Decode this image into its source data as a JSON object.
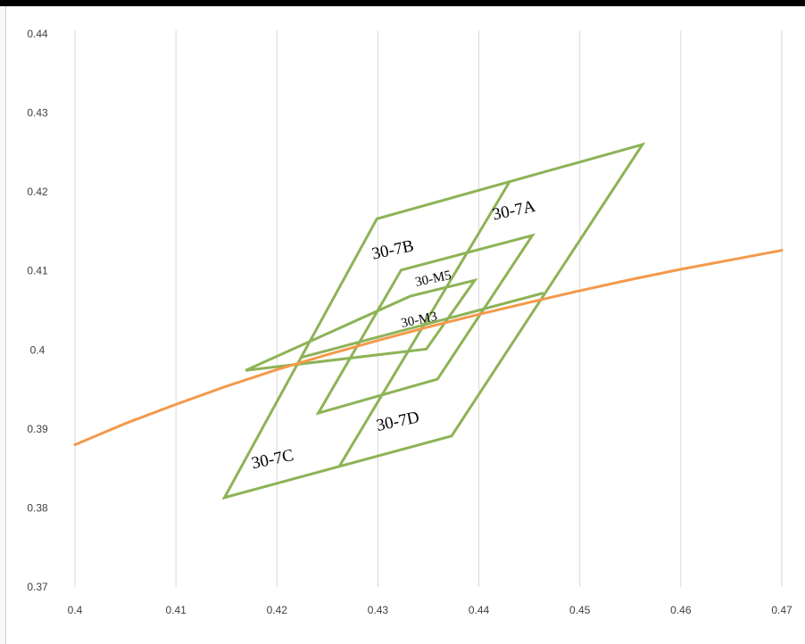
{
  "chart_data": {
    "type": "line",
    "title": "",
    "xlabel": "",
    "ylabel": "",
    "xlim": [
      0.4,
      0.47
    ],
    "ylim": [
      0.37,
      0.44
    ],
    "x_ticks": [
      "0.4",
      "0.41",
      "0.42",
      "0.43",
      "0.44",
      "0.45",
      "0.46",
      "0.47"
    ],
    "y_ticks": [
      "0.37",
      "0.38",
      "0.39",
      "0.4",
      "0.41",
      "0.42",
      "0.43",
      "0.44"
    ],
    "grid": "vertical",
    "colors": {
      "regions": "#8DB356",
      "curve": "#F4994A",
      "grid": "#d9d9d9"
    },
    "curve": {
      "x": [
        0.4,
        0.405,
        0.41,
        0.415,
        0.42,
        0.425,
        0.43,
        0.435,
        0.44,
        0.445,
        0.45,
        0.455,
        0.46,
        0.465,
        0.47
      ],
      "y": [
        0.388,
        0.3907,
        0.3931,
        0.3954,
        0.3975,
        0.3994,
        0.4012,
        0.4029,
        0.4045,
        0.406,
        0.4075,
        0.4089,
        0.4102,
        0.4114,
        0.4126
      ]
    },
    "regions": [
      {
        "points": [
          [
            0.4148,
            0.3813
          ],
          [
            0.4373,
            0.3891
          ],
          [
            0.4562,
            0.426
          ],
          [
            0.4299,
            0.4166
          ]
        ]
      },
      {
        "points": [
          [
            0.4223,
            0.399
          ],
          [
            0.4464,
            0.4072
          ]
        ]
      },
      {
        "points": [
          [
            0.4262,
            0.3853
          ],
          [
            0.443,
            0.4212
          ]
        ]
      },
      {
        "points": [
          [
            0.4241,
            0.392
          ],
          [
            0.4359,
            0.3963
          ],
          [
            0.4453,
            0.4145
          ],
          [
            0.4323,
            0.4101
          ]
        ]
      },
      {
        "points": [
          [
            0.4169,
            0.3974
          ],
          [
            0.4348,
            0.4001
          ],
          [
            0.4396,
            0.4088
          ],
          [
            0.4332,
            0.4068
          ]
        ]
      }
    ],
    "annotations": [
      {
        "text": "30-7A",
        "x": 0.4435,
        "y": 0.4175,
        "size": 19
      },
      {
        "text": "30-7B",
        "x": 0.4315,
        "y": 0.4125,
        "size": 19
      },
      {
        "text": "30-M5",
        "x": 0.4355,
        "y": 0.4089,
        "size": 15
      },
      {
        "text": "30-M3",
        "x": 0.4341,
        "y": 0.4037,
        "size": 15
      },
      {
        "text": "30-7D",
        "x": 0.432,
        "y": 0.3908,
        "size": 19
      },
      {
        "text": "30-7C",
        "x": 0.4196,
        "y": 0.386,
        "size": 19
      }
    ]
  }
}
